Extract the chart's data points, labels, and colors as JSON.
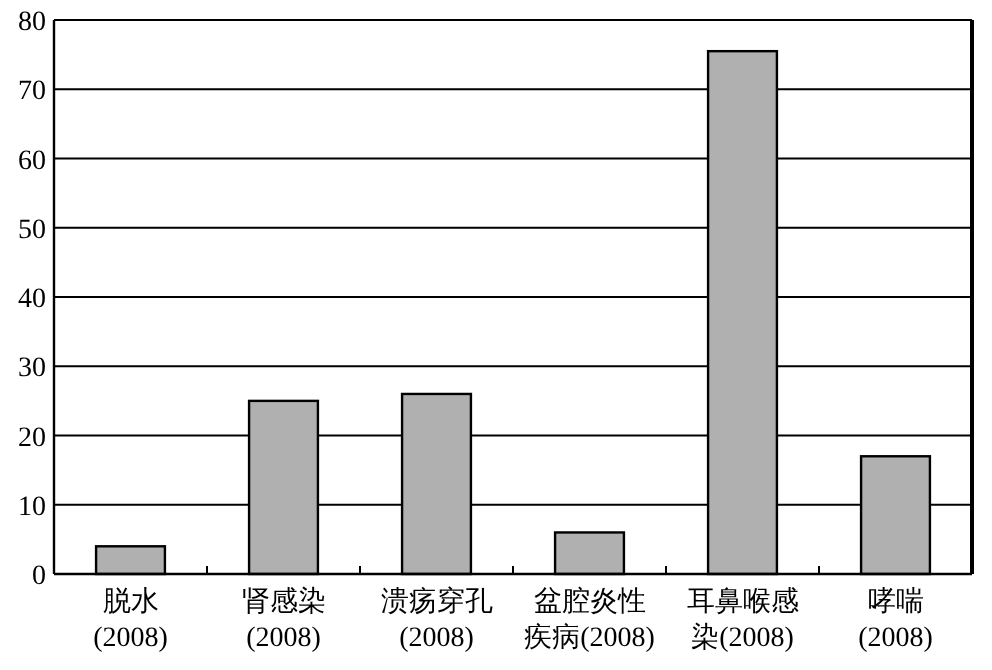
{
  "chart_data": {
    "type": "bar",
    "categories": [
      "脱水(2008)",
      "肾感染(2008)",
      "溃疡穿孔(2008)",
      "盆腔炎性疾病(2008)",
      "耳鼻喉感染(2008)",
      "哮喘(2008)"
    ],
    "values": [
      4,
      25,
      26,
      6,
      75.5,
      17
    ],
    "color": "#b0b0b0",
    "ylim": [
      0,
      80
    ],
    "yticks": [
      0,
      10,
      20,
      30,
      40,
      50,
      60,
      70,
      80
    ],
    "grid": "y"
  }
}
